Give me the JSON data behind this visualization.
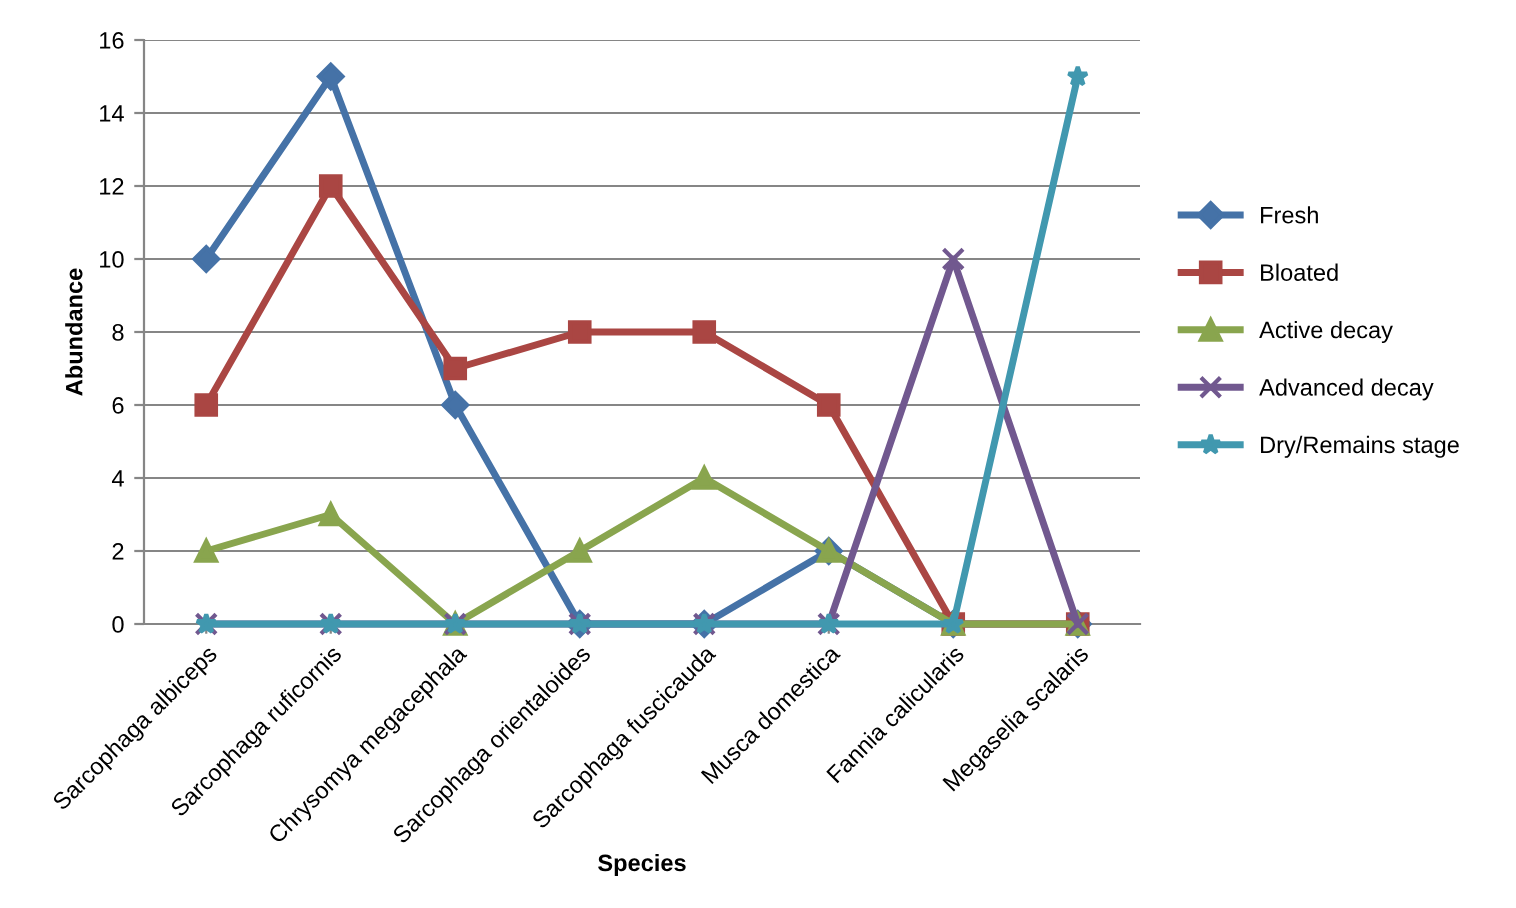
{
  "chart_data": {
    "type": "line",
    "xlabel": "Species",
    "ylabel": "Abundance",
    "categories": [
      "Sarcophaga albiceps",
      "Sarcophaga ruficornis",
      "Chrysomya megacephala",
      "Sarcophaga orientaloides",
      "Sarcophaga fuscicauda",
      "Musca domestica",
      "Fannia calicularis",
      "Megaselia scalaris"
    ],
    "series": [
      {
        "name": "Fresh",
        "color": "#4572a7",
        "marker": "diamond",
        "values": [
          10,
          15,
          6,
          0,
          0,
          2,
          0,
          0
        ]
      },
      {
        "name": "Bloated",
        "color": "#aa4643",
        "marker": "square",
        "values": [
          6,
          12,
          7,
          8,
          8,
          6,
          0,
          0
        ]
      },
      {
        "name": "Active decay",
        "color": "#89a54e",
        "marker": "triangle",
        "values": [
          2,
          3,
          0,
          2,
          4,
          2,
          0,
          0
        ]
      },
      {
        "name": "Advanced decay",
        "color": "#71588f",
        "marker": "cross",
        "values": [
          0,
          0,
          0,
          0,
          0,
          0,
          10,
          0
        ]
      },
      {
        "name": "Dry/Remains stage",
        "color": "#4198af",
        "marker": "star",
        "values": [
          0,
          0,
          0,
          0,
          0,
          0,
          0,
          15
        ]
      }
    ],
    "ylim": [
      0,
      16
    ],
    "yticks": [
      0,
      2,
      4,
      6,
      8,
      10,
      12,
      14,
      16
    ],
    "grid": "y",
    "legend": "right",
    "line_style": "solid"
  }
}
